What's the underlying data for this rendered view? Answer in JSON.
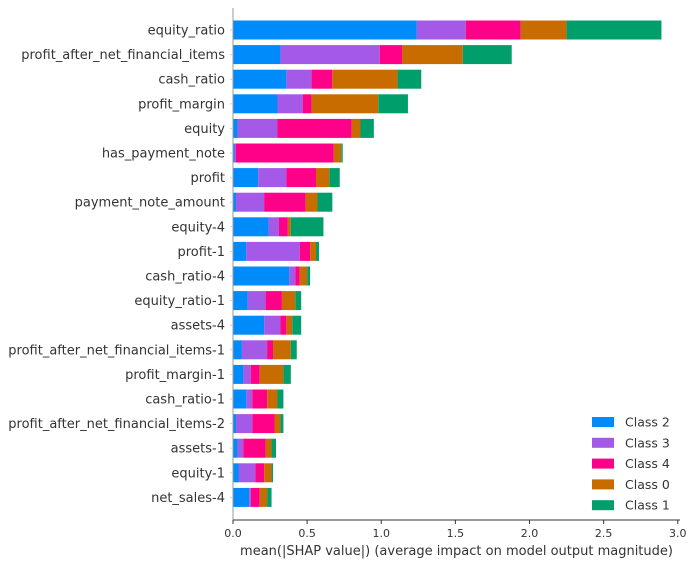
{
  "chart_data": {
    "type": "bar",
    "orientation": "horizontal",
    "stacked": true,
    "title": "",
    "xlabel": "mean(|SHAP value|) (average impact on model output magnitude)",
    "ylabel": "",
    "xlim": [
      0,
      3.0
    ],
    "xticks": [
      "0.0",
      "0.5",
      "1.0",
      "1.5",
      "2.0",
      "2.5",
      "3.0"
    ],
    "grid": false,
    "legend_position": "bottom-right",
    "categories": [
      "equity_ratio",
      "profit_after_net_financial_items",
      "cash_ratio",
      "profit_margin",
      "equity",
      "has_payment_note",
      "profit",
      "payment_note_amount",
      "equity-4",
      "profit-1",
      "cash_ratio-4",
      "equity_ratio-1",
      "assets-4",
      "profit_after_net_financial_items-1",
      "profit_margin-1",
      "cash_ratio-1",
      "profit_after_net_financial_items-2",
      "assets-1",
      "equity-1",
      "net_sales-4"
    ],
    "series": [
      {
        "name": "Class 2",
        "color": "#008bfb",
        "values": [
          1.24,
          0.32,
          0.36,
          0.3,
          0.03,
          0.01,
          0.17,
          0.02,
          0.24,
          0.09,
          0.38,
          0.1,
          0.21,
          0.06,
          0.07,
          0.09,
          0.02,
          0.03,
          0.04,
          0.11
        ]
      },
      {
        "name": "Class 3",
        "color": "#a45ae6",
        "values": [
          0.33,
          0.67,
          0.17,
          0.17,
          0.27,
          0.01,
          0.19,
          0.19,
          0.07,
          0.36,
          0.04,
          0.12,
          0.11,
          0.17,
          0.05,
          0.04,
          0.11,
          0.04,
          0.11,
          0.01
        ]
      },
      {
        "name": "Class 4",
        "color": "#ff0088",
        "values": [
          0.37,
          0.15,
          0.14,
          0.06,
          0.5,
          0.66,
          0.2,
          0.28,
          0.06,
          0.07,
          0.03,
          0.11,
          0.04,
          0.04,
          0.06,
          0.1,
          0.15,
          0.15,
          0.06,
          0.06
        ]
      },
      {
        "name": "Class 0",
        "color": "#c96c00",
        "values": [
          0.31,
          0.41,
          0.44,
          0.45,
          0.06,
          0.05,
          0.09,
          0.08,
          0.02,
          0.04,
          0.05,
          0.09,
          0.04,
          0.12,
          0.16,
          0.07,
          0.04,
          0.04,
          0.05,
          0.05
        ]
      },
      {
        "name": "Class 1",
        "color": "#009e6a",
        "values": [
          0.64,
          0.33,
          0.16,
          0.2,
          0.09,
          0.01,
          0.07,
          0.1,
          0.22,
          0.02,
          0.02,
          0.04,
          0.06,
          0.04,
          0.05,
          0.04,
          0.02,
          0.03,
          0.01,
          0.03
        ]
      }
    ],
    "legend_order": [
      "Class 2",
      "Class 3",
      "Class 4",
      "Class 0",
      "Class 1"
    ]
  }
}
